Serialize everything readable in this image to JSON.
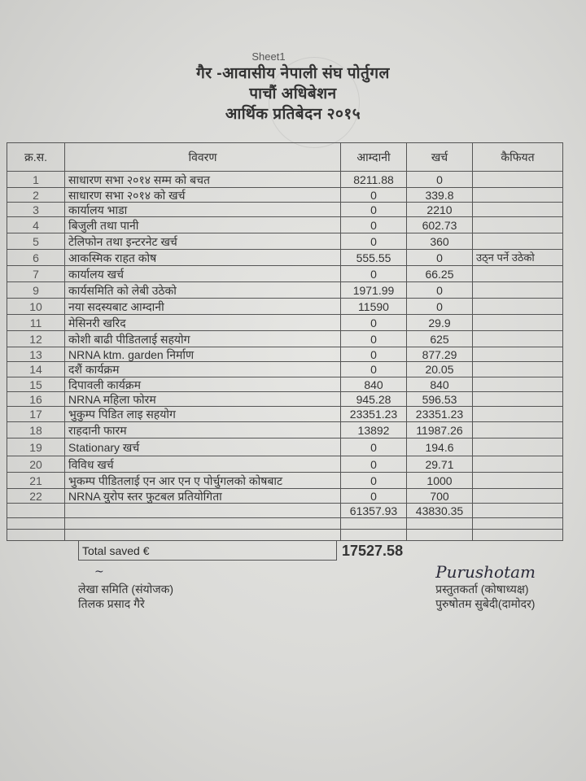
{
  "header": {
    "sheet_label": "Sheet1",
    "title": "गैर -आवासीय नेपाली संघ पोर्तुगल",
    "subtitle": "पाचौं अधिबेशन",
    "report": "आर्थिक प्रतिबेदन २०१५"
  },
  "table": {
    "columns": [
      "क्र.स.",
      "विवरण",
      "आम्दानी",
      "खर्च",
      "कैफियत"
    ],
    "rows": [
      {
        "sn": "1",
        "desc": "साधारण सभा २०१४ सम्म को बचत",
        "income": "8211.88",
        "expense": "0",
        "remark": ""
      },
      {
        "sn": "2",
        "desc": "साधारण सभा २०१४ को खर्च",
        "income": "0",
        "expense": "339.8",
        "remark": ""
      },
      {
        "sn": "3",
        "desc": "कार्यालय भाडा",
        "income": "0",
        "expense": "2210",
        "remark": ""
      },
      {
        "sn": "4",
        "desc": "बिजुली तथा पानी",
        "income": "0",
        "expense": "602.73",
        "remark": ""
      },
      {
        "sn": "5",
        "desc": "टेलिफोन तथा इन्टरनेट खर्च",
        "income": "0",
        "expense": "360",
        "remark": ""
      },
      {
        "sn": "6",
        "desc": "आकस्मिक राहत कोष",
        "income": "555.55",
        "expense": "0",
        "remark": "उठ्न पर्ने उठेको"
      },
      {
        "sn": "7",
        "desc": "कार्यालय खर्च",
        "income": "0",
        "expense": "66.25",
        "remark": ""
      },
      {
        "sn": "9",
        "desc": "कार्यसमिति को लेबी उठेको",
        "income": "1971.99",
        "expense": "0",
        "remark": ""
      },
      {
        "sn": "10",
        "desc": "नया सदस्यबाट आम्दानी",
        "income": "11590",
        "expense": "0",
        "remark": ""
      },
      {
        "sn": "11",
        "desc": "मेसिनरी खरिद",
        "income": "0",
        "expense": "29.9",
        "remark": ""
      },
      {
        "sn": "12",
        "desc": "कोशी बाढी पीडितलाई सहयोग",
        "income": "0",
        "expense": "625",
        "remark": ""
      },
      {
        "sn": "13",
        "desc": "NRNA ktm. garden निर्माण",
        "income": "0",
        "expense": "877.29",
        "remark": ""
      },
      {
        "sn": "14",
        "desc": "दशैं कार्यक्रम",
        "income": "0",
        "expense": "20.05",
        "remark": ""
      },
      {
        "sn": "15",
        "desc": "दिपावली कार्यक्रम",
        "income": "840",
        "expense": "840",
        "remark": ""
      },
      {
        "sn": "16",
        "desc": "NRNA महिला फोरम",
        "income": "945.28",
        "expense": "596.53",
        "remark": ""
      },
      {
        "sn": "17",
        "desc": "भुकुम्प पिडित लाइ सहयोग",
        "income": "23351.23",
        "expense": "23351.23",
        "remark": ""
      },
      {
        "sn": "18",
        "desc": "राहदानी फारम",
        "income": "13892",
        "expense": "11987.26",
        "remark": ""
      },
      {
        "sn": "19",
        "desc": "Stationary खर्च",
        "income": "0",
        "expense": "194.6",
        "remark": ""
      },
      {
        "sn": "20",
        "desc": "विविध खर्च",
        "income": "0",
        "expense": "29.71",
        "remark": ""
      },
      {
        "sn": "21",
        "desc": "भुकम्प पीडितलाई एन आर एन ए पोर्चुगलको कोषबाट",
        "income": "0",
        "expense": "1000",
        "remark": ""
      },
      {
        "sn": "22",
        "desc": "NRNA युरोप स्तर फुटबल प्रतियोगिता",
        "income": "0",
        "expense": "700",
        "remark": ""
      }
    ],
    "totals": {
      "income": "61357.93",
      "expense": "43830.35"
    },
    "total_saved_label": "Total saved €",
    "total_saved_value": "17527.58"
  },
  "signatures": {
    "left": {
      "handwritten": "तिलक",
      "role": "लेखा समिति (संयोजक)",
      "name": "तिलक प्रसाद गैरे"
    },
    "right": {
      "handwritten": "Purushotam",
      "role": "प्रस्तुतकर्ता (कोषाध्यक्ष)",
      "name": "पुरुषोतम सुबेदी(दामोदर)"
    }
  }
}
